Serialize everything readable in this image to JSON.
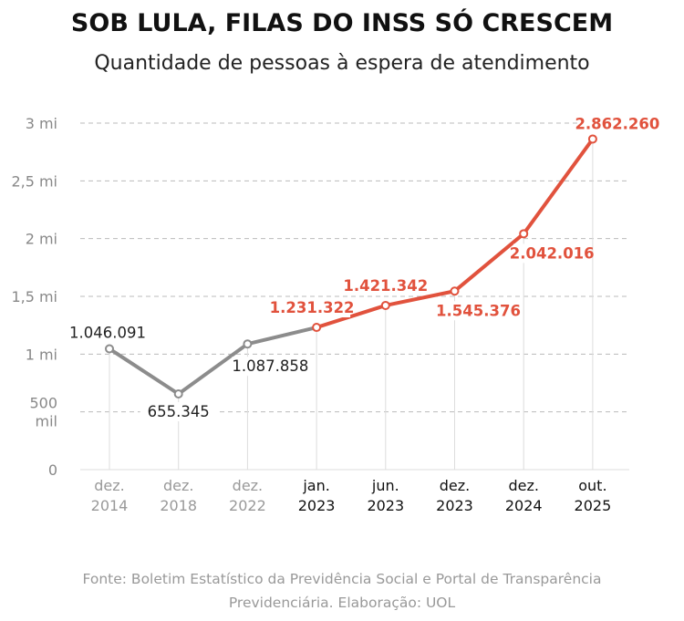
{
  "title": "SOB LULA, FILAS DO INSS SÓ CRESCEM",
  "subtitle": "Quantidade de pessoas à espera de atendimento",
  "source": "Fonte: Boletim Estatístico da Previdência Social e Portal de Transparência Previdenciária. Elaboração: UOL",
  "chart_data": {
    "type": "line",
    "categories": [
      [
        "dez.",
        "2014"
      ],
      [
        "dez.",
        "2018"
      ],
      [
        "dez.",
        "2022"
      ],
      [
        "jan.",
        "2023"
      ],
      [
        "jun.",
        "2023"
      ],
      [
        "dez.",
        "2023"
      ],
      [
        "dez.",
        "2024"
      ],
      [
        "out.",
        "2025"
      ]
    ],
    "values": [
      1046091,
      655345,
      1087858,
      1231322,
      1421342,
      1545376,
      2042016,
      2862260
    ],
    "labels": [
      "1.046.091",
      "655.345",
      "1.087.858",
      "1.231.322",
      "1.421.342",
      "1.545.376",
      "2.042.016",
      "2.862.260"
    ],
    "ylim": [
      0,
      3000000
    ],
    "yticks": [
      {
        "v": 0,
        "l": [
          "0"
        ]
      },
      {
        "v": 500000,
        "l": [
          "500",
          "mil"
        ]
      },
      {
        "v": 1000000,
        "l": [
          "1 mi"
        ]
      },
      {
        "v": 1500000,
        "l": [
          "1,5 mi"
        ]
      },
      {
        "v": 2000000,
        "l": [
          "2 mi"
        ]
      },
      {
        "v": 2500000,
        "l": [
          "2,5 mi"
        ]
      },
      {
        "v": 3000000,
        "l": [
          "3 mi"
        ]
      }
    ],
    "grid": true,
    "colors": {
      "before": "#8c8c8c",
      "after": "#e1523d"
    },
    "highlight_from_index": 3
  }
}
